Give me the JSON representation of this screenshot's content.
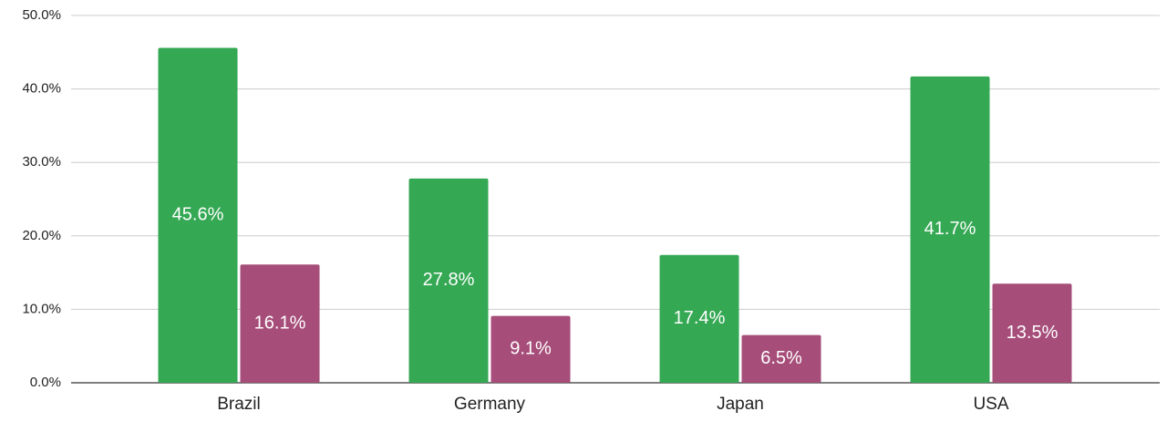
{
  "chart_data": {
    "type": "bar",
    "categories": [
      "Brazil",
      "Germany",
      "Japan",
      "USA"
    ],
    "series": [
      {
        "color": "#34a853",
        "values": [
          45.6,
          27.8,
          17.4,
          41.7
        ],
        "value_labels": [
          "45.6%",
          "27.8%",
          "17.4%",
          "41.7%"
        ]
      },
      {
        "color": "#a64d79",
        "values": [
          16.1,
          9.1,
          6.5,
          13.5
        ],
        "value_labels": [
          "16.1%",
          "9.1%",
          "6.5%",
          "13.5%"
        ]
      }
    ],
    "ylim": [
      0,
      50
    ],
    "yticks": [
      {
        "value": 0,
        "label": "0.0%"
      },
      {
        "value": 10,
        "label": "10.0%"
      },
      {
        "value": 20,
        "label": "20.0%"
      },
      {
        "value": 30,
        "label": "30.0%"
      },
      {
        "value": 40,
        "label": "40.0%"
      },
      {
        "value": 50,
        "label": "50.0%"
      }
    ],
    "grid": true
  }
}
